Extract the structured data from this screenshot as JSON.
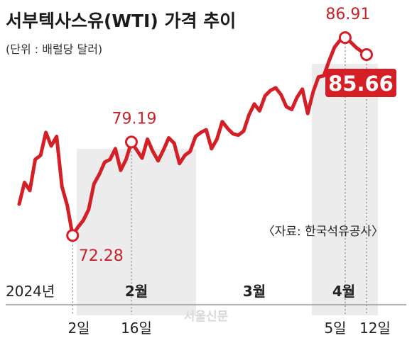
{
  "header": {
    "title": "서부텍사스유(WTI) 가격 추이",
    "unit": "(단위 : 배럴당 달러)"
  },
  "source": "〈자료: 한국석유공사〉",
  "watermark": "서울신문",
  "colors": {
    "line": "#d41f26",
    "shade": "#ececec",
    "badge": "#d41f26",
    "text": "#222222"
  },
  "chart_data": {
    "type": "line",
    "title": "서부텍사스유(WTI) 가격 추이",
    "unit_label": "(단위 : 배럴당 달러)",
    "year_label": "2024년",
    "months": [
      "2월",
      "3월",
      "4월"
    ],
    "date_ticks": [
      "2일",
      "16일",
      "5일",
      "12일"
    ],
    "series": [
      {
        "values": [
          74.6,
          76.2,
          75.6,
          77.9,
          78.2,
          79.9,
          78.9,
          79.6,
          75.9,
          74.5,
          72.28,
          72.9,
          73.4,
          74.2,
          76.1,
          76.8,
          77.7,
          77.9,
          78.7,
          77.1,
          77.9,
          79.19,
          78.6,
          78.0,
          79.4,
          78.5,
          77.8,
          78.6,
          79.5,
          79.1,
          77.6,
          78.2,
          78.5,
          79.6,
          79.9,
          80.1,
          78.7,
          79.4,
          80.7,
          80.2,
          79.8,
          79.7,
          80.0,
          81.2,
          82.0,
          81.5,
          82.6,
          83.0,
          83.2,
          82.7,
          81.8,
          81.6,
          82.5,
          83.1,
          81.3,
          82.9,
          84.0,
          84.1,
          85.2,
          86.2,
          86.7,
          86.91,
          86.6,
          86.2,
          85.9,
          85.66
        ],
        "range_start_label": "72.28"
      }
    ],
    "annotations": [
      {
        "label": "72.28",
        "index": 10,
        "value": 72.28
      },
      {
        "label": "79.19",
        "index": 21,
        "value": 79.19
      },
      {
        "label": "86.91",
        "index": 61,
        "value": 86.91
      },
      {
        "label": "85.66",
        "index": 65,
        "value": 85.66,
        "style": "badge"
      }
    ],
    "ylim": [
      70.3,
      87.6
    ],
    "grid": false,
    "legend": "none"
  }
}
